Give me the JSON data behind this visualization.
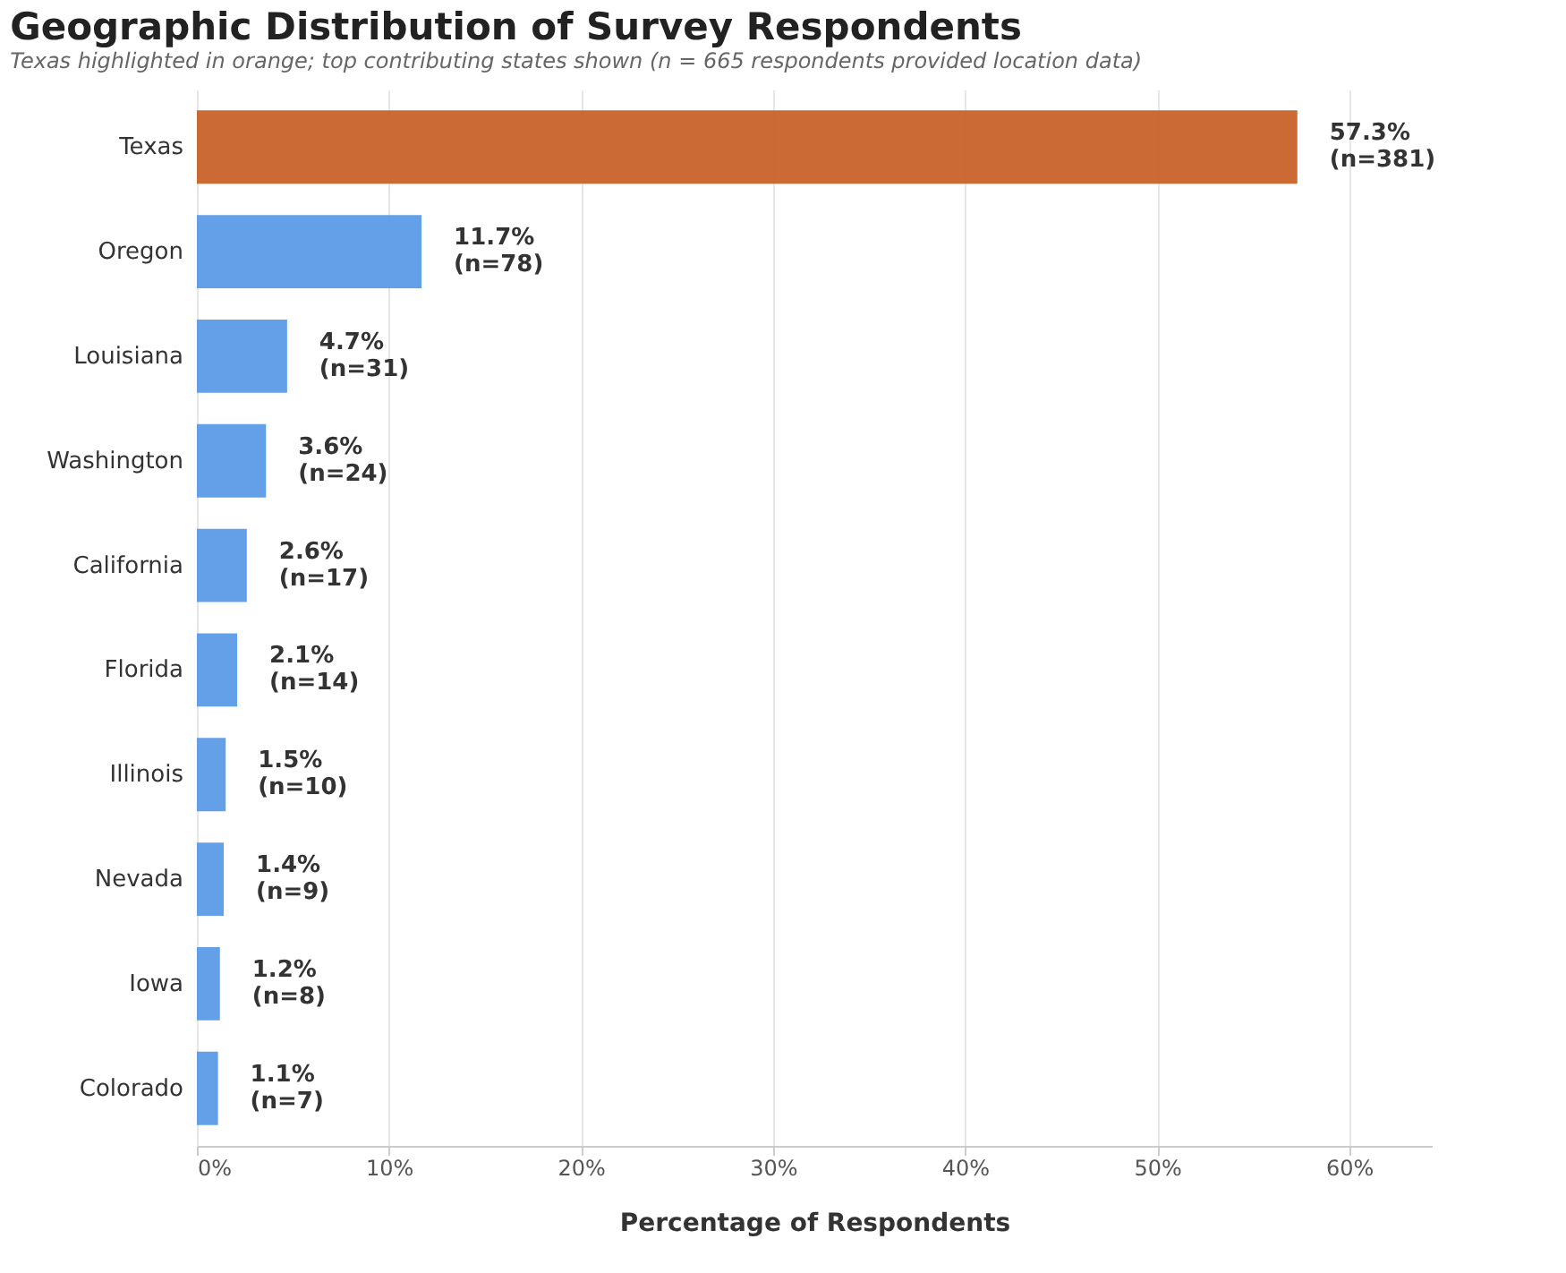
{
  "chart_data": {
    "type": "bar",
    "orientation": "horizontal",
    "title": "Geographic Distribution of Survey Respondents",
    "subtitle": "Texas highlighted in orange; top contributing states shown (n = 665 respondents provided location data)",
    "xlabel": "Percentage of Respondents",
    "categories": [
      "Texas",
      "Oregon",
      "Louisiana",
      "Washington",
      "California",
      "Florida",
      "Illinois",
      "Nevada",
      "Iowa",
      "Colorado"
    ],
    "values": [
      57.3,
      11.7,
      4.7,
      3.6,
      2.6,
      2.1,
      1.5,
      1.4,
      1.2,
      1.1
    ],
    "colors": [
      "#c8622a",
      "#5b9be6",
      "#5b9be6",
      "#5b9be6",
      "#5b9be6",
      "#5b9be6",
      "#5b9be6",
      "#5b9be6",
      "#5b9be6",
      "#5b9be6"
    ],
    "value_labels": [
      "57.3%\n(n=381)",
      "11.7%\n(n=78)",
      "4.7%\n(n=31)",
      "3.6%\n(n=24)",
      "2.6%\n(n=17)",
      "2.1%\n(n=14)",
      "1.5%\n(n=10)",
      "1.4%\n(n=9)",
      "1.2%\n(n=8)",
      "1.1%\n(n=7)"
    ],
    "xlim": [
      0,
      64.3
    ],
    "xticks": [
      {
        "value": 0,
        "label": "0%"
      },
      {
        "value": 10,
        "label": "10%"
      },
      {
        "value": 20,
        "label": "20%"
      },
      {
        "value": 30,
        "label": "30%"
      },
      {
        "value": 40,
        "label": "40%"
      },
      {
        "value": 50,
        "label": "50%"
      },
      {
        "value": 60,
        "label": "60%"
      }
    ],
    "grid": "x"
  }
}
